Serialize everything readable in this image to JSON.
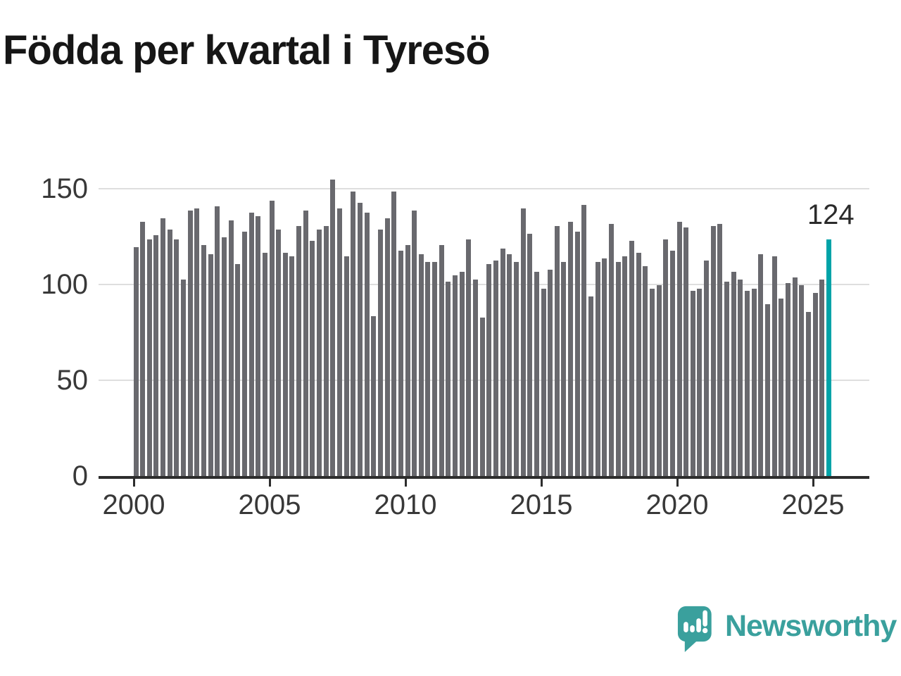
{
  "chart_data": {
    "type": "bar",
    "title": "Födda per kvartal i Tyresö",
    "frequency": "quarterly",
    "period_start": "2000 Q1",
    "period_end": "2025 Q3",
    "series": [
      {
        "name": "Födda per kvartal",
        "values": [
          120,
          133,
          124,
          126,
          135,
          129,
          124,
          103,
          139,
          140,
          121,
          116,
          141,
          125,
          134,
          111,
          128,
          138,
          136,
          117,
          144,
          129,
          117,
          115,
          131,
          139,
          123,
          129,
          131,
          155,
          140,
          115,
          149,
          143,
          138,
          84,
          129,
          135,
          149,
          118,
          121,
          139,
          116,
          112,
          112,
          121,
          102,
          105,
          107,
          124,
          103,
          83,
          111,
          113,
          119,
          116,
          112,
          140,
          127,
          107,
          98,
          108,
          131,
          112,
          133,
          128,
          142,
          94,
          112,
          114,
          132,
          112,
          115,
          123,
          117,
          110,
          98,
          100,
          124,
          118,
          133,
          130,
          97,
          98,
          113,
          131,
          132,
          102,
          107,
          103,
          97,
          98,
          116,
          90,
          115,
          93,
          101,
          104,
          100,
          86,
          96,
          103,
          124
        ]
      }
    ],
    "highlight": {
      "index": 102,
      "quarter": "2025 Q3",
      "value": 124,
      "label": "124"
    },
    "y_ticks": [
      0,
      50,
      100,
      150
    ],
    "x_tick_labels": [
      "2000",
      "2005",
      "2010",
      "2015",
      "2020",
      "2025"
    ],
    "ylim": [
      0,
      160
    ],
    "grid": "horizontal",
    "legend": "none"
  },
  "footer": {
    "brand": "Newsworthy"
  },
  "colors": {
    "bar": "#69696e",
    "highlight": "#00a3a8",
    "brand": "#3aa09d",
    "axis": "#2d2d2d",
    "gridline": "#dedede",
    "tick_text": "#383838",
    "title_text": "#161616",
    "background": "#ffffff"
  }
}
